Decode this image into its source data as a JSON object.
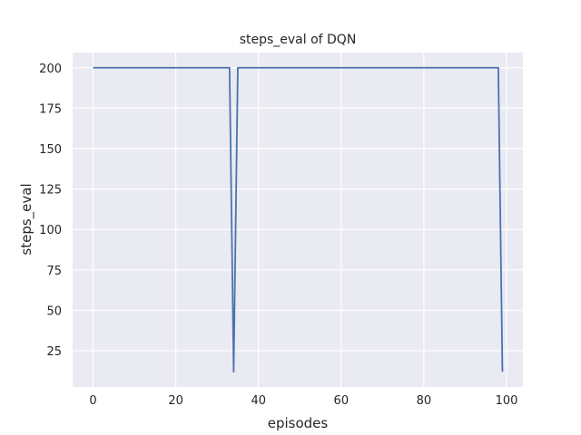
{
  "chart_data": {
    "type": "line",
    "title": "steps_eval of DQN",
    "xlabel": "episodes",
    "ylabel": "steps_eval",
    "xlim": [
      -4.95,
      103.95
    ],
    "ylim": [
      2.6,
      209.4
    ],
    "xticks": [
      0,
      20,
      40,
      60,
      80,
      100
    ],
    "yticks": [
      25,
      50,
      75,
      100,
      125,
      150,
      175,
      200
    ],
    "grid": true,
    "colors": {
      "background": "#eaeaf2",
      "grid": "#ffffff",
      "line": "#4c72b0"
    },
    "series": [
      {
        "x_start": 0,
        "x_end": 99,
        "default_value": 200,
        "overrides": {
          "34": 12,
          "99": 12
        }
      }
    ]
  }
}
